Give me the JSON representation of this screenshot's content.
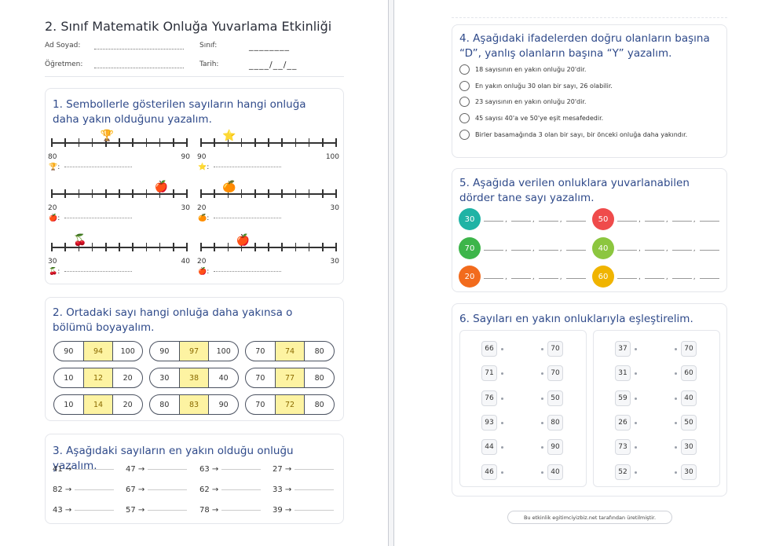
{
  "header": {
    "title": "2. Sınıf Matematik Onluğa Yuvarlama Etkinliği",
    "name_label": "Ad Soyad:",
    "teacher_label": "Öğretmen:",
    "class_label": "Sınıf:",
    "class_value": "________",
    "date_label": "Tarih:",
    "date_value": "____/__/__"
  },
  "section1": {
    "title": "1. Sembollerle gösterilen sayıların hangi onluğa daha yakın olduğunu yazalım.",
    "lines": [
      {
        "start": "80",
        "end": "90",
        "icon": "🏆",
        "icon_name": "trophy-icon",
        "pos": 4
      },
      {
        "start": "90",
        "end": "100",
        "icon": "⭐",
        "icon_name": "star-icon",
        "pos": 2
      },
      {
        "start": "20",
        "end": "30",
        "icon": "🍎",
        "icon_name": "radish-icon",
        "pos": 8
      },
      {
        "start": "20",
        "end": "30",
        "icon": "🍊",
        "icon_name": "orange-icon",
        "pos": 2
      },
      {
        "start": "30",
        "end": "40",
        "icon": "🍒",
        "icon_name": "cherry-icon",
        "pos": 2
      },
      {
        "start": "20",
        "end": "30",
        "icon": "🍎",
        "icon_name": "apple-icon",
        "pos": 3
      }
    ]
  },
  "section2": {
    "title": "2. Ortadaki sayı hangi onluğa daha yakınsa o bölümü boyayalım.",
    "pills": [
      [
        "90",
        "94",
        "100"
      ],
      [
        "90",
        "97",
        "100"
      ],
      [
        "70",
        "74",
        "80"
      ],
      [
        "10",
        "12",
        "20"
      ],
      [
        "30",
        "38",
        "40"
      ],
      [
        "70",
        "77",
        "80"
      ],
      [
        "10",
        "14",
        "20"
      ],
      [
        "80",
        "83",
        "90"
      ],
      [
        "70",
        "72",
        "80"
      ]
    ]
  },
  "section3": {
    "title": "3. Aşağıdaki sayıların en yakın olduğu onluğu yazalım.",
    "items": [
      "41 →",
      "47 →",
      "63 →",
      "27 →",
      "82 →",
      "67 →",
      "62 →",
      "33 →",
      "43 →",
      "57 →",
      "78 →",
      "39 →"
    ]
  },
  "section4": {
    "title": "4. Aşağıdaki ifadelerden doğru olanların başına “D”, yanlış olanların başına “Y” yazalım.",
    "statements": [
      "18 sayısının en yakın onluğu 20'dir.",
      "En yakın onluğu 30 olan bir sayı, 26 olabilir.",
      "23 sayısının en yakın onluğu 20'dir.",
      "45 sayısı 40'a ve 50'ye eşit mesafededir.",
      "Birler basamağında 3 olan bir sayı, bir önceki onluğa daha yakındır."
    ]
  },
  "section5": {
    "title": "5. Aşağıda verilen onluklara yuvarlanabilen dörder tane sayı yazalım.",
    "tens": [
      {
        "value": "30",
        "color": "#1fb3a5"
      },
      {
        "value": "50",
        "color": "#ef4b4b"
      },
      {
        "value": "70",
        "color": "#3db54a"
      },
      {
        "value": "40",
        "color": "#8cc63f"
      },
      {
        "value": "20",
        "color": "#f26b1d"
      },
      {
        "value": "60",
        "color": "#f0b400"
      }
    ]
  },
  "section6": {
    "title": "6. Sayıları en yakın onluklarıyla eşleştirelim.",
    "left_box": {
      "numbers": [
        "66",
        "71",
        "76",
        "93",
        "44",
        "46"
      ],
      "tens": [
        "70",
        "70",
        "50",
        "80",
        "90",
        "40"
      ]
    },
    "right_box": {
      "numbers": [
        "37",
        "31",
        "59",
        "26",
        "73",
        "52"
      ],
      "tens": [
        "70",
        "60",
        "40",
        "50",
        "30",
        "30"
      ]
    }
  },
  "footer": {
    "text": "Bu etkinlik egitimciyizbiz.net tarafından üretilmiştir."
  }
}
